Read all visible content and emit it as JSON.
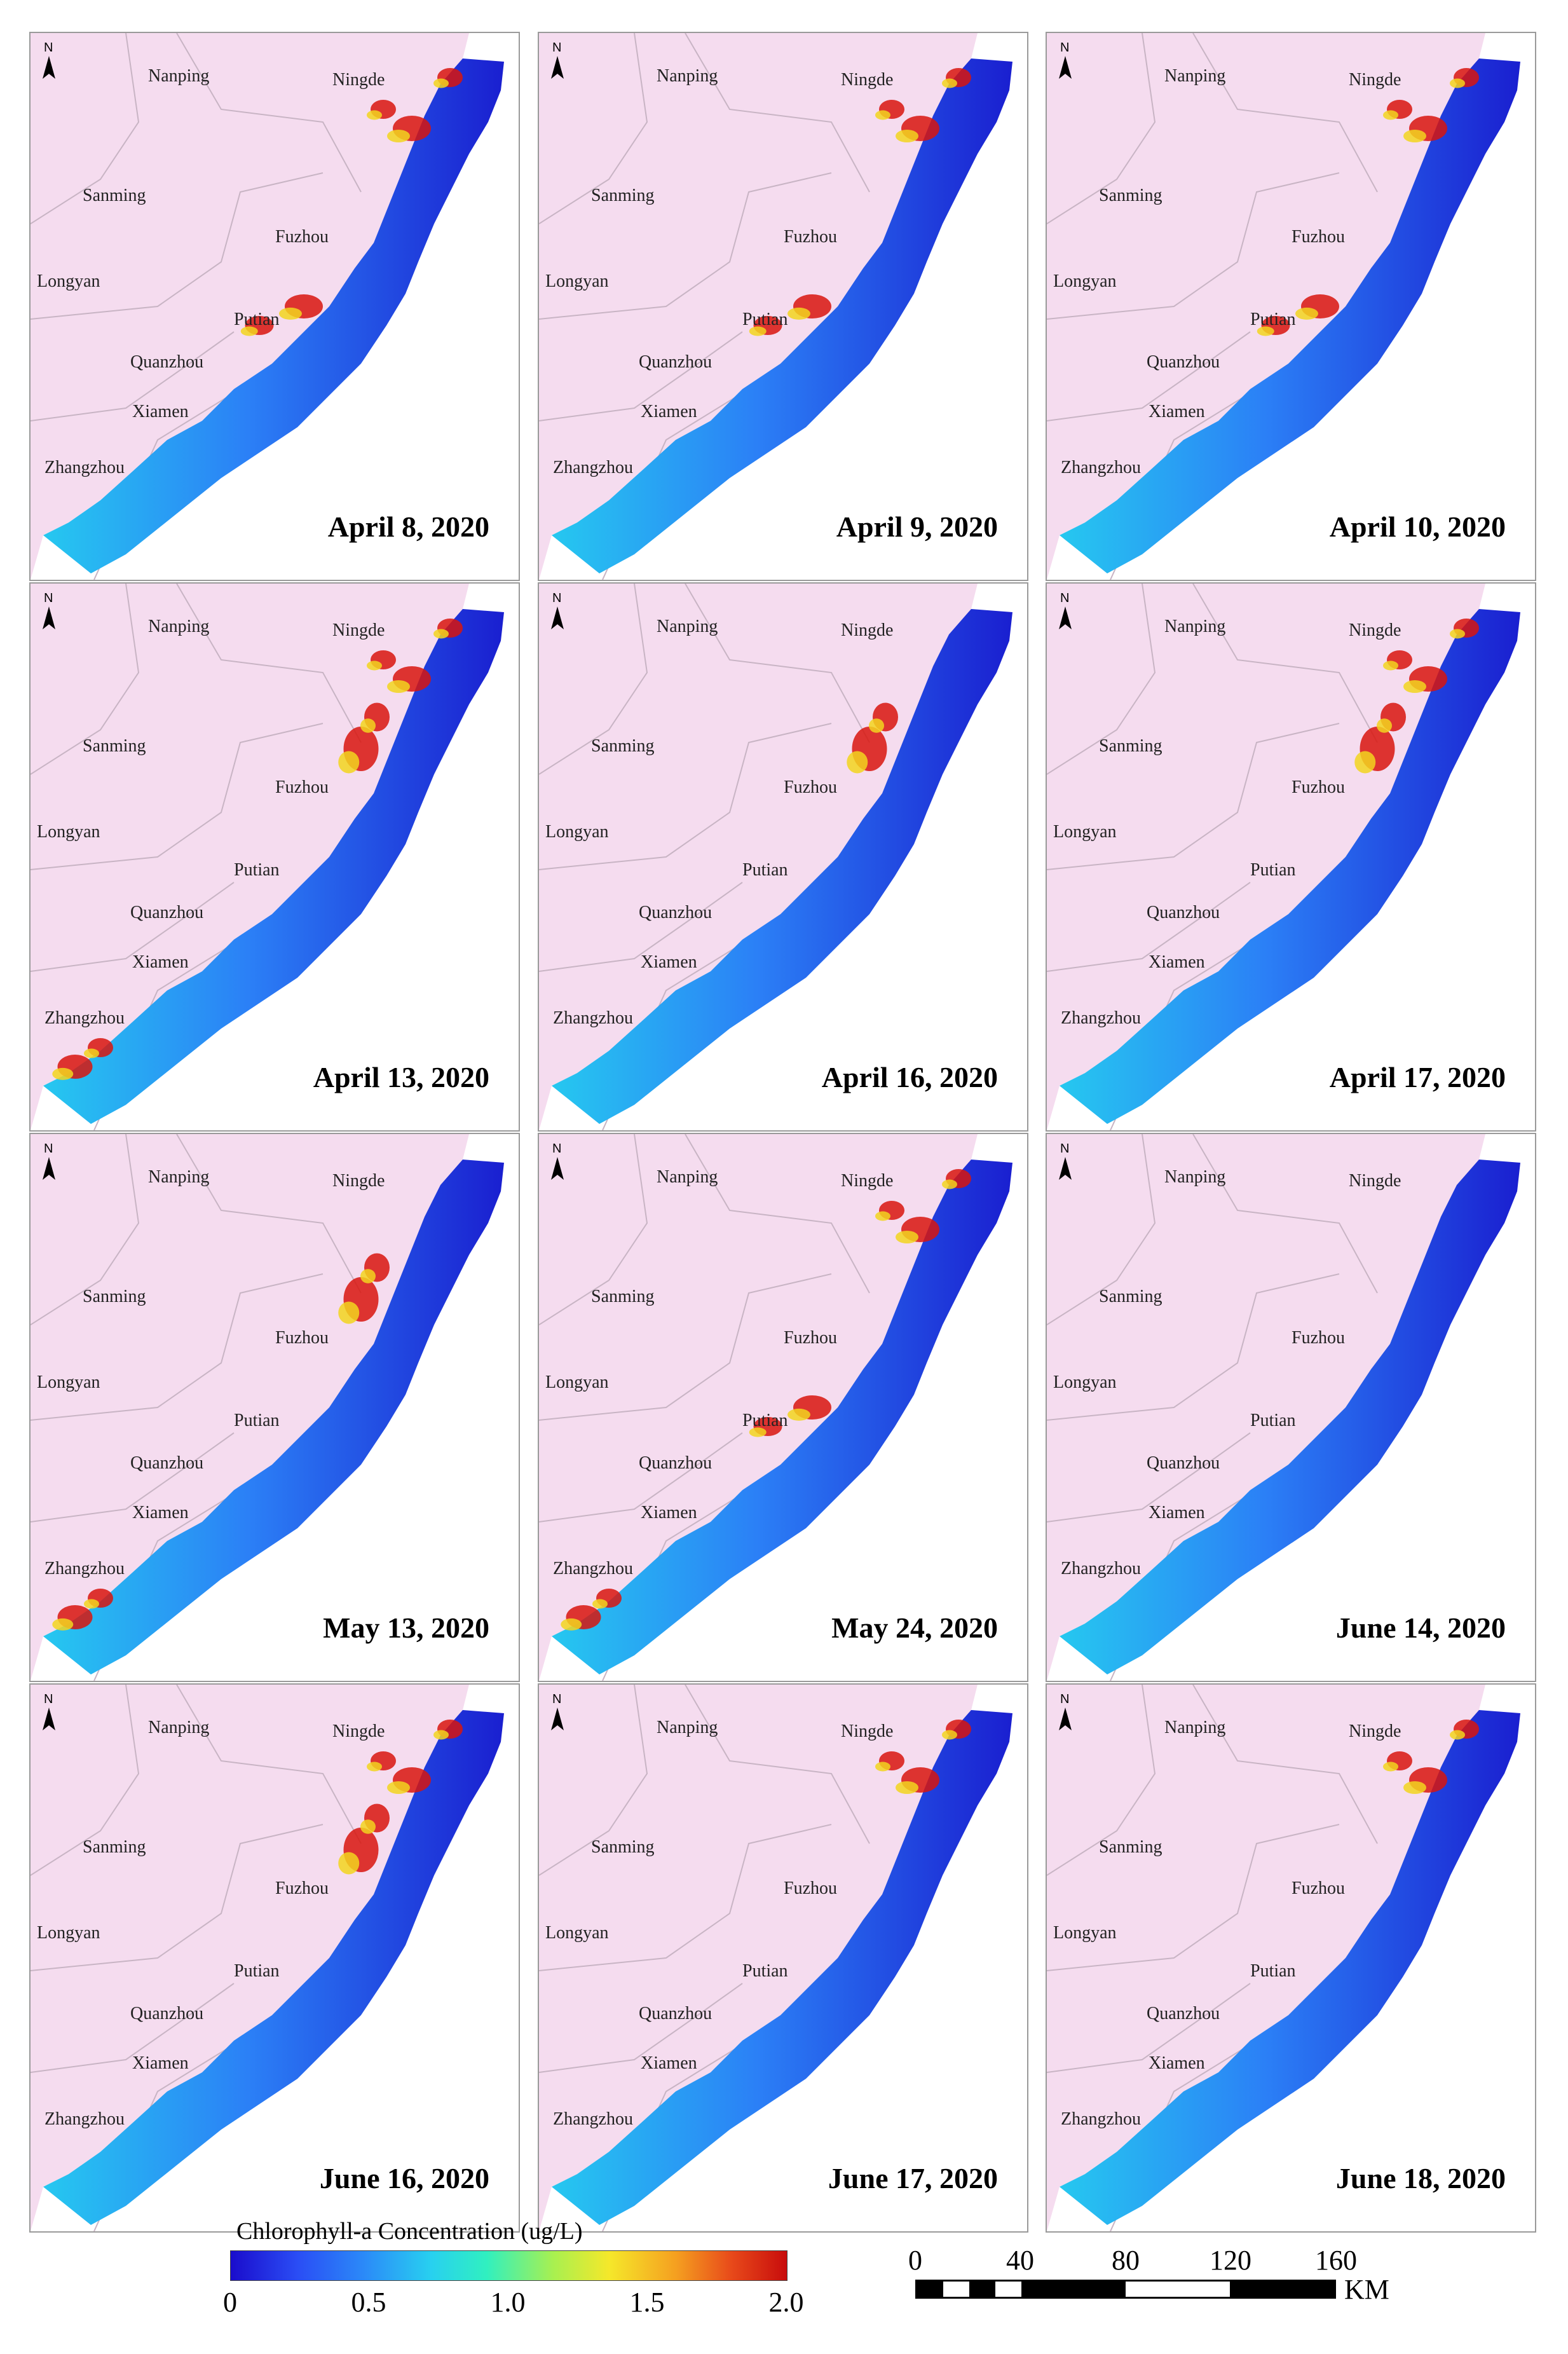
{
  "panels": [
    {
      "date": "April 8, 2020",
      "hotspots": [
        "north",
        "mid"
      ]
    },
    {
      "date": "April 9, 2020",
      "hotspots": [
        "north",
        "mid"
      ]
    },
    {
      "date": "April 10, 2020",
      "hotspots": [
        "north",
        "mid"
      ]
    },
    {
      "date": "April 13, 2020",
      "hotspots": [
        "north",
        "fuzhou",
        "south"
      ]
    },
    {
      "date": "April 16, 2020",
      "hotspots": [
        "fuzhou"
      ]
    },
    {
      "date": "April 17, 2020",
      "hotspots": [
        "fuzhou",
        "north"
      ]
    },
    {
      "date": "May 13, 2020",
      "hotspots": [
        "fuzhou",
        "south"
      ]
    },
    {
      "date": "May 24, 2020",
      "hotspots": [
        "north",
        "mid",
        "south"
      ]
    },
    {
      "date": "June 14, 2020",
      "hotspots": []
    },
    {
      "date": "June 16, 2020",
      "hotspots": [
        "north",
        "fuzhou"
      ]
    },
    {
      "date": "June 17, 2020",
      "hotspots": [
        "north"
      ]
    },
    {
      "date": "June 18, 2020",
      "hotspots": [
        "north"
      ]
    }
  ],
  "cities": {
    "nanping": "Nanping",
    "ningde": "Ningde",
    "sanming": "Sanming",
    "fuzhou": "Fuzhou",
    "longyan": "Longyan",
    "putian": "Putian",
    "quanzhou": "Quanzhou",
    "xiamen": "Xiamen",
    "zhangzhou": "Zhangzhou"
  },
  "north_arrow": {
    "label": "N"
  },
  "legend": {
    "title": "Chlorophyll-a Concentration (ug/L)",
    "ticks": [
      "0",
      "0.5",
      "1.0",
      "1.5",
      "2.0"
    ],
    "tick_values": [
      0,
      0.5,
      1.0,
      1.5,
      2.0
    ],
    "range": [
      0,
      2.0
    ],
    "colors": [
      "#1a0ccc",
      "#2b8af8",
      "#30f0c0",
      "#f5e82a",
      "#c80c0c"
    ]
  },
  "scale_bar": {
    "ticks": [
      "0",
      "40",
      "80",
      "120",
      "160"
    ],
    "tick_values": [
      0,
      40,
      80,
      120,
      160
    ],
    "unit": "KM"
  },
  "colors": {
    "land": "#f5dcef",
    "boundary": "#c8b4c4",
    "sea_background": "#ffffff"
  }
}
